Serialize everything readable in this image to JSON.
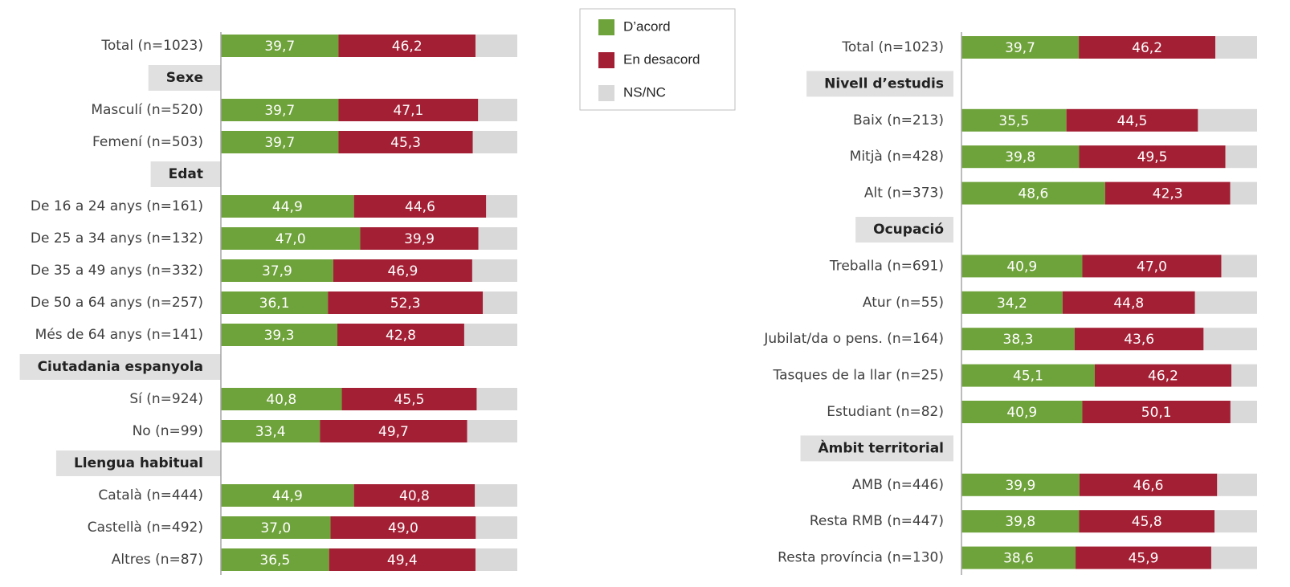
{
  "chart_data": [
    {
      "type": "bar",
      "orientation": "horizontal",
      "stacked": true,
      "xlim": [
        0,
        100
      ],
      "categories": [
        "Total (n=1023)",
        "Sexe",
        "Masculí (n=520)",
        "Femení (n=503)",
        "Edat",
        "De 16 a 24 anys (n=161)",
        "De 25 a 34 anys (n=132)",
        "De 35 a 49 anys (n=332)",
        "De 50 a 64 anys (n=257)",
        "Més de 64 anys (n=141)",
        "Ciutadania espanyola",
        "Sí (n=924)",
        "No (n=99)",
        "Llengua habitual",
        "Català (n=444)",
        "Castellà (n=492)",
        "Altres (n=87)"
      ],
      "series": [
        {
          "name": "D’acord",
          "color": "#6ea23a",
          "values": [
            39.7,
            null,
            39.7,
            39.7,
            null,
            44.9,
            47.0,
            37.9,
            36.1,
            39.3,
            null,
            40.8,
            33.4,
            null,
            44.9,
            37.0,
            36.5
          ],
          "value_labels": [
            "39,7",
            null,
            "39,7",
            "39,7",
            null,
            "44,9",
            "47,0",
            "37,9",
            "36,1",
            "39,3",
            null,
            "40,8",
            "33,4",
            null,
            "44,9",
            "37,0",
            "36,5"
          ]
        },
        {
          "name": "En desacord",
          "color": "#a31f34",
          "values": [
            46.2,
            null,
            47.1,
            45.3,
            null,
            44.6,
            39.9,
            46.9,
            52.3,
            42.8,
            null,
            45.5,
            49.7,
            null,
            40.8,
            49.0,
            49.4
          ],
          "value_labels": [
            "46,2",
            null,
            "47,1",
            "45,3",
            null,
            "44,6",
            "39,9",
            "46,9",
            "52,3",
            "42,8",
            null,
            "45,5",
            "49,7",
            null,
            "40,8",
            "49,0",
            "49,4"
          ]
        },
        {
          "name": "NS/NC",
          "color": "#d9d9d9",
          "values": [
            14.1,
            null,
            13.2,
            15.0,
            null,
            10.5,
            13.1,
            15.2,
            11.6,
            17.9,
            null,
            13.7,
            16.9,
            null,
            14.3,
            14.0,
            14.1
          ]
        }
      ]
    },
    {
      "type": "bar",
      "orientation": "horizontal",
      "stacked": true,
      "xlim": [
        0,
        100
      ],
      "categories": [
        "Total (n=1023)",
        "Nivell d’estudis",
        "Baix (n=213)",
        "Mitjà (n=428)",
        "Alt (n=373)",
        "Ocupació",
        "Treballa (n=691)",
        "Atur (n=55)",
        "Jubilat/da o pens. (n=164)",
        "Tasques de la llar (n=25)",
        "Estudiant (n=82)",
        "Àmbit territorial",
        "AMB (n=446)",
        "Resta RMB (n=447)",
        "Resta província (n=130)"
      ],
      "series": [
        {
          "color": "#6ea23a",
          "values": [
            39.7,
            null,
            35.5,
            39.8,
            48.6,
            null,
            40.9,
            34.2,
            38.3,
            45.1,
            40.9,
            null,
            39.9,
            39.8,
            38.6
          ],
          "value_labels": [
            "39,7",
            null,
            "35,5",
            "39,8",
            "48,6",
            null,
            "40,9",
            "34,2",
            "38,3",
            "45,1",
            "40,9",
            null,
            "39,9",
            "39,8",
            "38,6"
          ]
        },
        {
          "color": "#a31f34",
          "values": [
            46.2,
            null,
            44.5,
            49.5,
            42.3,
            null,
            47.0,
            44.8,
            43.6,
            46.2,
            50.1,
            null,
            46.6,
            45.8,
            45.9
          ],
          "value_labels": [
            "46,2",
            null,
            "44,5",
            "49,5",
            "42,3",
            null,
            "47,0",
            "44,8",
            "43,6",
            "46,2",
            "50,1",
            null,
            "46,6",
            "45,8",
            "45,9"
          ]
        },
        {
          "color": "#d9d9d9",
          "values": [
            14.1,
            null,
            20.0,
            10.7,
            9.1,
            null,
            12.1,
            21.0,
            18.1,
            8.7,
            9.0,
            null,
            13.5,
            14.4,
            15.5
          ]
        }
      ]
    }
  ]
}
